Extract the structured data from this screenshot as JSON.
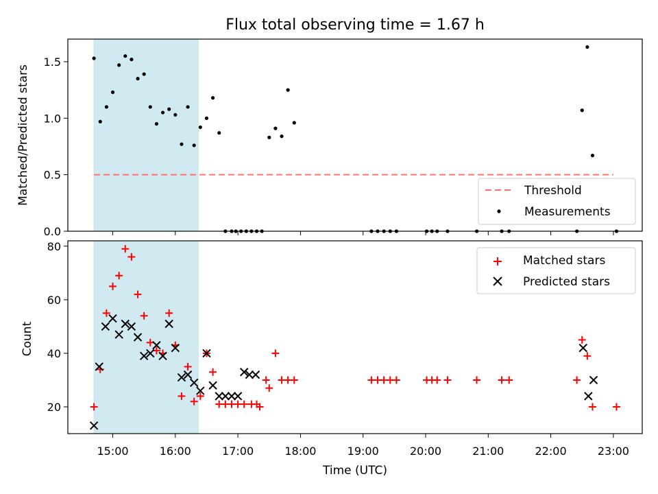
{
  "chart_data": [
    {
      "type": "scatter",
      "title": "Flux total observing time = 1.67 h",
      "xlabel": "",
      "ylabel": "Matched/Predicted stars",
      "ylim": [
        0.0,
        1.7
      ],
      "yticks": [
        "0.0",
        "0.5",
        "1.0",
        "1.5"
      ],
      "highlight_span": [
        "14:42",
        "16:22"
      ],
      "highlight_color": "#add8e6",
      "legend": {
        "placement": "lower right",
        "threshold_label": "Threshold",
        "measurements_label": "Measurements"
      },
      "threshold": {
        "value": 0.5,
        "from": "14:42",
        "to": "23:00",
        "color": "#ff7070"
      },
      "measurements": {
        "color": "#000000",
        "x": [
          "14:42",
          "14:48",
          "14:54",
          "15:00",
          "15:06",
          "15:12",
          "15:18",
          "15:24",
          "15:30",
          "15:36",
          "15:42",
          "15:48",
          "15:54",
          "16:00",
          "16:06",
          "16:12",
          "16:18",
          "16:24",
          "16:30",
          "16:36",
          "16:42",
          "16:48",
          "16:54",
          "16:58",
          "17:03",
          "17:08",
          "17:13",
          "17:18",
          "17:23",
          "17:30",
          "17:36",
          "17:42",
          "17:48",
          "17:54",
          "19:08",
          "19:14",
          "19:20",
          "19:26",
          "19:32",
          "20:01",
          "20:06",
          "20:11",
          "20:21",
          "20:49",
          "21:13",
          "21:20",
          "22:25",
          "22:30",
          "22:35",
          "22:40",
          "23:03"
        ],
        "y": [
          1.53,
          0.97,
          1.1,
          1.23,
          1.47,
          1.55,
          1.52,
          1.35,
          1.39,
          1.1,
          0.95,
          1.05,
          1.08,
          1.03,
          0.77,
          1.1,
          0.76,
          0.92,
          1.0,
          1.18,
          0.87,
          0.0,
          0.0,
          0.0,
          0.0,
          0.0,
          0.0,
          0.0,
          0.0,
          0.83,
          0.91,
          0.84,
          1.25,
          0.96,
          0.0,
          0.0,
          0.0,
          0.0,
          0.0,
          0.0,
          0.0,
          0.0,
          0.0,
          0.0,
          0.0,
          0.0,
          0.0,
          1.07,
          1.63,
          0.67,
          0.0
        ]
      }
    },
    {
      "type": "scatter",
      "title": "",
      "xlabel": "Time (UTC)",
      "ylabel": "Count",
      "ylim": [
        10,
        82
      ],
      "yticks": [
        "20",
        "40",
        "60",
        "80"
      ],
      "xticks": [
        "15:00",
        "16:00",
        "17:00",
        "18:00",
        "19:00",
        "20:00",
        "21:00",
        "22:00",
        "23:00"
      ],
      "highlight_span": [
        "14:42",
        "16:22"
      ],
      "legend": {
        "placement": "upper right"
      },
      "series": [
        {
          "name": "Matched stars",
          "marker": "+",
          "color": "#ff0000",
          "x": [
            "14:42",
            "14:48",
            "14:54",
            "15:00",
            "15:06",
            "15:12",
            "15:18",
            "15:24",
            "15:30",
            "15:36",
            "15:42",
            "15:48",
            "15:54",
            "16:00",
            "16:06",
            "16:12",
            "16:18",
            "16:24",
            "16:30",
            "16:36",
            "16:42",
            "16:48",
            "16:54",
            "17:00",
            "17:06",
            "17:13",
            "17:18",
            "17:21",
            "17:27",
            "17:30",
            "17:36",
            "17:42",
            "17:48",
            "17:54",
            "19:08",
            "19:14",
            "19:20",
            "19:26",
            "19:32",
            "20:01",
            "20:06",
            "20:11",
            "20:21",
            "20:49",
            "21:13",
            "21:20",
            "22:25",
            "22:30",
            "22:35",
            "22:40",
            "23:03"
          ],
          "y": [
            20,
            34,
            55,
            65,
            69,
            79,
            76,
            62,
            54,
            44,
            41,
            40,
            55,
            43,
            24,
            35,
            22,
            24,
            40,
            33,
            21,
            21,
            21,
            21,
            21,
            21,
            21,
            20,
            30,
            27,
            40,
            30,
            30,
            30,
            30,
            30,
            30,
            30,
            30,
            30,
            30,
            30,
            30,
            30,
            30,
            30,
            30,
            45,
            39,
            20,
            20
          ]
        },
        {
          "name": "Predicted stars",
          "marker": "x",
          "color": "#000000",
          "x": [
            "14:42",
            "14:47",
            "14:53",
            "15:00",
            "15:06",
            "15:12",
            "15:18",
            "15:24",
            "15:30",
            "15:36",
            "15:42",
            "15:48",
            "15:54",
            "16:00",
            "16:06",
            "16:12",
            "16:18",
            "16:24",
            "16:30",
            "16:36",
            "16:42",
            "16:48",
            "16:54",
            "17:00",
            "17:06",
            "17:11",
            "17:17",
            "22:31",
            "22:36",
            "22:41"
          ],
          "y": [
            13,
            35,
            50,
            53,
            47,
            51,
            50,
            46,
            39,
            40,
            43,
            39,
            51,
            42,
            31,
            32,
            29,
            26,
            40,
            28,
            24,
            24,
            24,
            24,
            33,
            32,
            32,
            42,
            24,
            30
          ]
        }
      ]
    }
  ]
}
